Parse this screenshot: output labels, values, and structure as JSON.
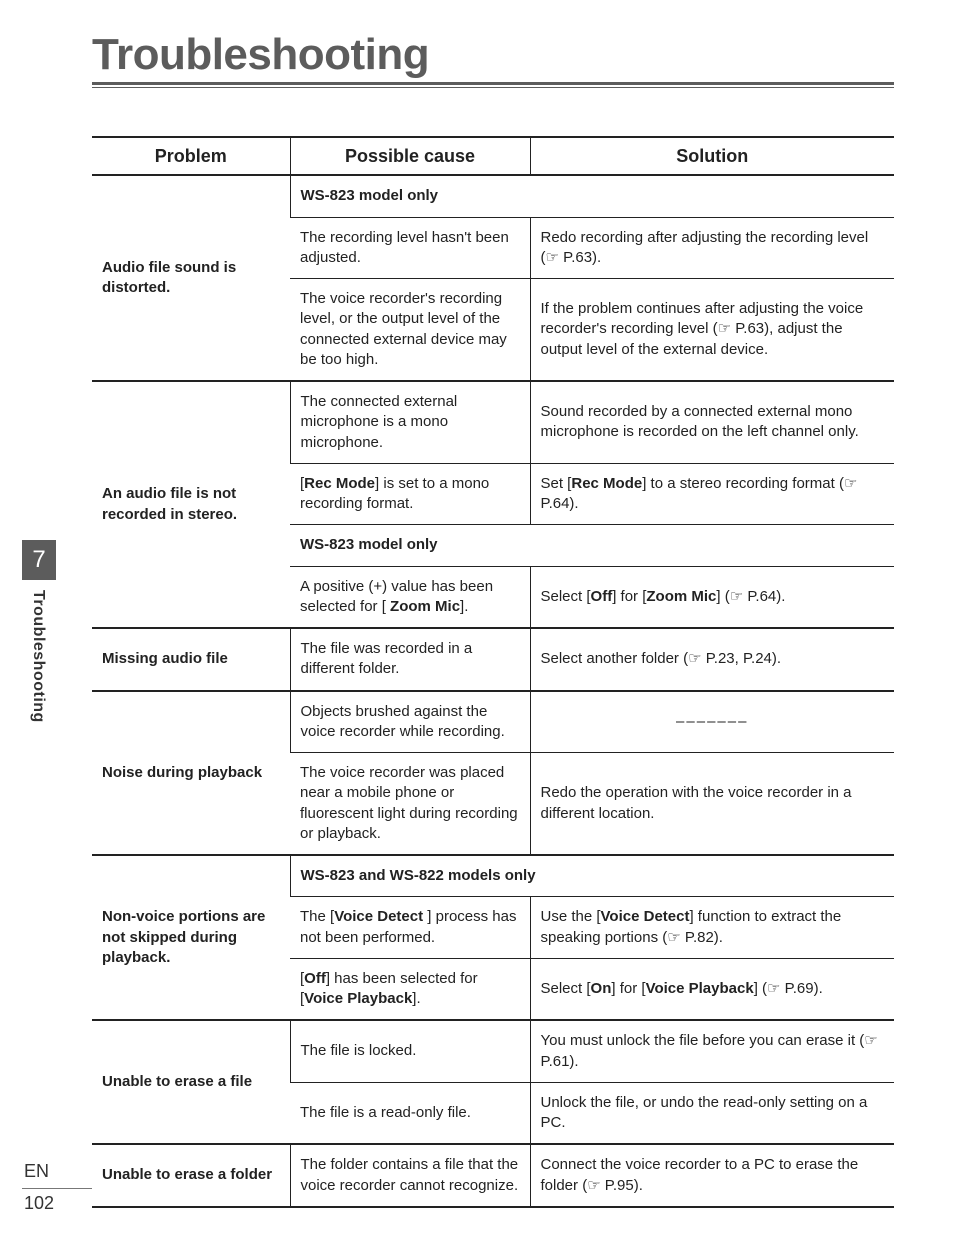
{
  "title": "Troubleshooting",
  "chapter_number": "7",
  "side_label": "Troubleshooting",
  "lang": "EN",
  "page_number": "102",
  "ref_glyph": "☞",
  "colors": {
    "title": "#5c5c5c",
    "tab_bg": "#5c5c5c",
    "tab_fg": "#ffffff",
    "rule": "#222222",
    "text": "#222222"
  },
  "table": {
    "headers": {
      "problem": "Problem",
      "cause": "Possible cause",
      "solution": "Solution"
    },
    "groups": [
      {
        "problem": "Audio file sound is distorted.",
        "rows": [
          {
            "type": "banner",
            "text": "WS-823 model only"
          },
          {
            "type": "row",
            "cause": [
              {
                "t": "The recording level hasn't been adjusted."
              }
            ],
            "solution": [
              {
                "t": "Redo recording after adjusting the recording level ("
              },
              {
                "ref": true
              },
              {
                "t": " P.63)."
              }
            ]
          },
          {
            "type": "row",
            "cause": [
              {
                "t": "The voice recorder's recording level, or the output level of the connected external device may be too high."
              }
            ],
            "solution": [
              {
                "t": "If the problem continues after adjusting the voice recorder's recording level ("
              },
              {
                "ref": true
              },
              {
                "t": " P.63), adjust the output level of the external device."
              }
            ]
          }
        ]
      },
      {
        "problem": "An audio file is not recorded in stereo.",
        "rows": [
          {
            "type": "row",
            "cause": [
              {
                "t": "The connected external microphone is a mono microphone."
              }
            ],
            "solution": [
              {
                "t": "Sound recorded by a connected external mono microphone is recorded on the left channel only."
              }
            ]
          },
          {
            "type": "row",
            "cause": [
              {
                "t": "["
              },
              {
                "b": "Rec Mode"
              },
              {
                "t": "] is set to a mono recording format."
              }
            ],
            "solution": [
              {
                "t": "Set ["
              },
              {
                "b": "Rec Mode"
              },
              {
                "t": "] to a stereo recording format ("
              },
              {
                "ref": true
              },
              {
                "t": " P.64)."
              }
            ]
          },
          {
            "type": "banner",
            "text": "WS-823 model only"
          },
          {
            "type": "row",
            "cause": [
              {
                "t": "A positive (+) value has been selected for [ "
              },
              {
                "b": "Zoom Mic"
              },
              {
                "t": "]."
              }
            ],
            "solution": [
              {
                "t": "Select ["
              },
              {
                "b": "Off"
              },
              {
                "t": "] for ["
              },
              {
                "b": "Zoom Mic"
              },
              {
                "t": "] ("
              },
              {
                "ref": true
              },
              {
                "t": " P.64)."
              }
            ]
          }
        ]
      },
      {
        "problem": "Missing audio file",
        "rows": [
          {
            "type": "row",
            "cause": [
              {
                "t": "The file was recorded in a different folder."
              }
            ],
            "solution": [
              {
                "t": "Select another folder ("
              },
              {
                "ref": true
              },
              {
                "t": " P.23, P.24)."
              }
            ]
          }
        ]
      },
      {
        "problem": "Noise during playback",
        "rows": [
          {
            "type": "row",
            "cause": [
              {
                "t": "Objects brushed against the voice recorder while recording."
              }
            ],
            "solution": "dash"
          },
          {
            "type": "row",
            "cause": [
              {
                "t": "The voice recorder was placed near a mobile phone or fluorescent light during recording or playback."
              }
            ],
            "solution": [
              {
                "t": "Redo the operation with the voice recorder in a different location."
              }
            ]
          }
        ]
      },
      {
        "problem": "Non-voice portions are not skipped during playback.",
        "rows": [
          {
            "type": "banner",
            "text": "WS-823 and WS-822 models only"
          },
          {
            "type": "row",
            "cause": [
              {
                "t": "The ["
              },
              {
                "b": "Voice Detect "
              },
              {
                "t": "] process has not been performed."
              }
            ],
            "solution": [
              {
                "t": "Use the ["
              },
              {
                "b": "Voice Detect"
              },
              {
                "t": "] function to extract the speaking portions ("
              },
              {
                "ref": true
              },
              {
                "t": " P.82)."
              }
            ]
          },
          {
            "type": "row",
            "cause": [
              {
                "t": "["
              },
              {
                "b": "Off"
              },
              {
                "t": "] has been selected for ["
              },
              {
                "b": "Voice Playback"
              },
              {
                "t": "]."
              }
            ],
            "solution": [
              {
                "t": "Select ["
              },
              {
                "b": "On"
              },
              {
                "t": "] for ["
              },
              {
                "b": "Voice Playback"
              },
              {
                "t": "] ("
              },
              {
                "ref": true
              },
              {
                "t": " P.69)."
              }
            ]
          }
        ]
      },
      {
        "problem": "Unable to erase a file",
        "rows": [
          {
            "type": "row",
            "cause": [
              {
                "t": "The file is locked."
              }
            ],
            "solution": [
              {
                "t": "You must unlock the file before you can erase it ("
              },
              {
                "ref": true
              },
              {
                "t": " P.61)."
              }
            ]
          },
          {
            "type": "row",
            "cause": [
              {
                "t": "The file is a read-only file."
              }
            ],
            "solution": [
              {
                "t": "Unlock the file, or undo the read-only setting on a PC."
              }
            ]
          }
        ]
      },
      {
        "problem": "Unable to erase a folder",
        "rows": [
          {
            "type": "row",
            "cause": [
              {
                "t": "The folder contains a file that the voice recorder cannot recognize."
              }
            ],
            "solution": [
              {
                "t": "Connect the voice recorder to a PC to erase the folder ("
              },
              {
                "ref": true
              },
              {
                "t": " P.95)."
              }
            ]
          }
        ]
      }
    ]
  }
}
